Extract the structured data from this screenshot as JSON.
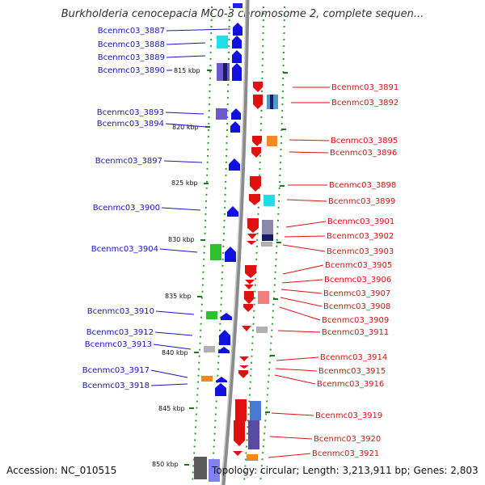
{
  "title": "Burkholderia cenocepacia MC0-3 chromosome 2, complete sequen...",
  "footer": {
    "accession": "Accession: NC_010515",
    "topology": "Topology: circular; Length: 3,213,911 bp; Genes: 2,803"
  },
  "colors": {
    "left_label": "#1515c8",
    "right_label": "#e01010",
    "backbone": "#8a8a8a",
    "track_dots": "#2e9c2e"
  },
  "ticks": [
    "815 kbp",
    "820 kbp",
    "825 kbp",
    "830 kbp",
    "835 kbp",
    "840 kbp",
    "845 kbp",
    "850 kbp"
  ],
  "left_labels": [
    "Bcenmc03_3887",
    "Bcenmc03_3888",
    "Bcenmc03_3889",
    "Bcenmc03_3890",
    "Bcenmc03_3893",
    "Bcenmc03_3894",
    "Bcenmc03_3897",
    "Bcenmc03_3900",
    "Bcenmc03_3904",
    "Bcenmc03_3910",
    "Bcenmc03_3912",
    "Bcenmc03_3913",
    "Bcenmc03_3917",
    "Bcenmc03_3918"
  ],
  "right_labels": [
    "Bcenmc03_3891",
    "Bcenmc03_3892",
    "Bcenmc03_3895",
    "Bcenmc03_3896",
    "Bcenmc03_3898",
    "Bcenmc03_3899",
    "Bcenmc03_3901",
    "Bcenmc03_3902",
    "Bcenmc03_3903",
    "Bcenmc03_3905",
    "Bcenmc03_3906",
    "Bcenmc03_3907",
    "Bcenmc03_3908",
    "Bcenmc03_3909",
    "Bcenmc03_3911",
    "Bcenmc03_3914",
    "Bcenmc03_3915",
    "Bcenmc03_3916",
    "Bcenmc03_3919",
    "Bcenmc03_3920",
    "Bcenmc03_3921"
  ]
}
